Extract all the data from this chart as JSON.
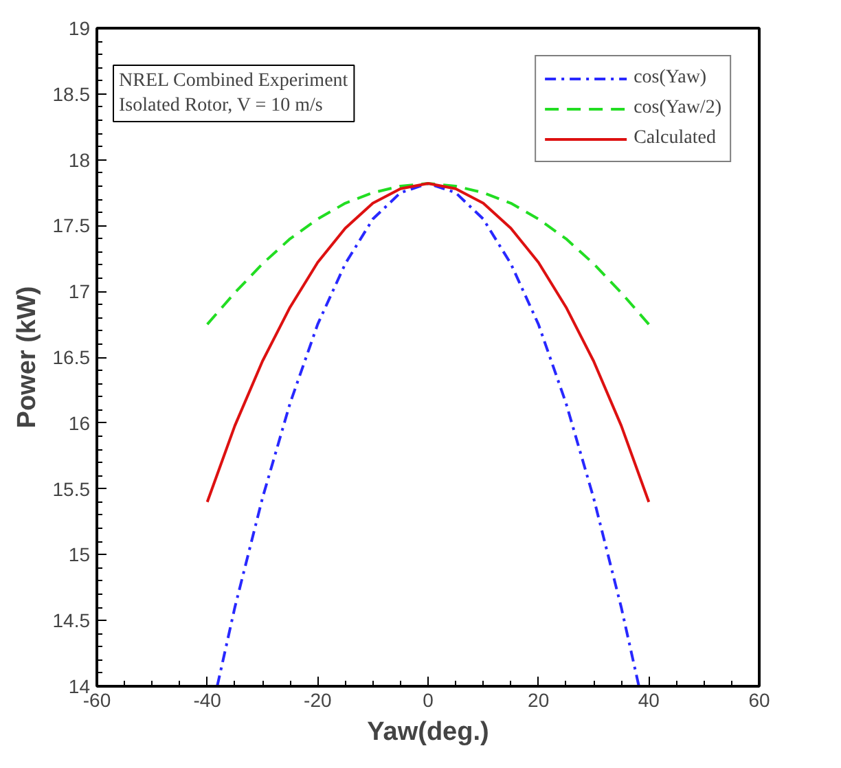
{
  "chart_data": {
    "type": "line",
    "xlabel": "Yaw(deg.)",
    "ylabel": "Power (kW)",
    "annotations": [
      "NREL Combined Experiment\nIsolated Rotor, V = 10 m/s"
    ],
    "xlim": [
      -60,
      60
    ],
    "xticks": [
      -60,
      -40,
      -20,
      0,
      20,
      40,
      60
    ],
    "ylim": [
      14,
      19
    ],
    "yticks": [
      14,
      14.5,
      15,
      15.5,
      16,
      16.5,
      17,
      17.5,
      18,
      18.5,
      19
    ],
    "grid": false,
    "legend": "top right",
    "marker": "none",
    "series": [
      {
        "name": "cos(Yaw)",
        "color": "#2828ff",
        "line_style": "dashdot",
        "x": [
          -38.2,
          -35,
          -30,
          -25,
          -20,
          -15,
          -10,
          -5,
          0,
          5,
          10,
          15,
          20,
          25,
          30,
          35,
          38.2
        ],
        "values": [
          14.0,
          14.6,
          15.43,
          16.15,
          16.75,
          17.21,
          17.55,
          17.75,
          17.82,
          17.75,
          17.55,
          17.21,
          16.75,
          16.15,
          15.43,
          14.6,
          14.0
        ]
      },
      {
        "name": "cos(Yaw/2)",
        "color": "#22dd22",
        "line_style": "dashed",
        "x": [
          -40,
          -35,
          -30,
          -25,
          -20,
          -15,
          -10,
          -5,
          0,
          5,
          10,
          15,
          20,
          25,
          30,
          35,
          40
        ],
        "values": [
          16.75,
          16.99,
          17.21,
          17.4,
          17.55,
          17.67,
          17.75,
          17.8,
          17.82,
          17.8,
          17.75,
          17.67,
          17.55,
          17.4,
          17.21,
          16.99,
          16.75
        ]
      },
      {
        "name": "Calculated",
        "color": "#dd1111",
        "line_style": "solid",
        "x": [
          -40,
          -35,
          -30,
          -25,
          -20,
          -15,
          -10,
          -5,
          0,
          5,
          10,
          15,
          20,
          25,
          30,
          35,
          40
        ],
        "values": [
          15.4,
          15.98,
          16.47,
          16.88,
          17.22,
          17.48,
          17.67,
          17.78,
          17.82,
          17.78,
          17.67,
          17.48,
          17.22,
          16.88,
          16.47,
          15.98,
          15.4
        ]
      }
    ]
  }
}
